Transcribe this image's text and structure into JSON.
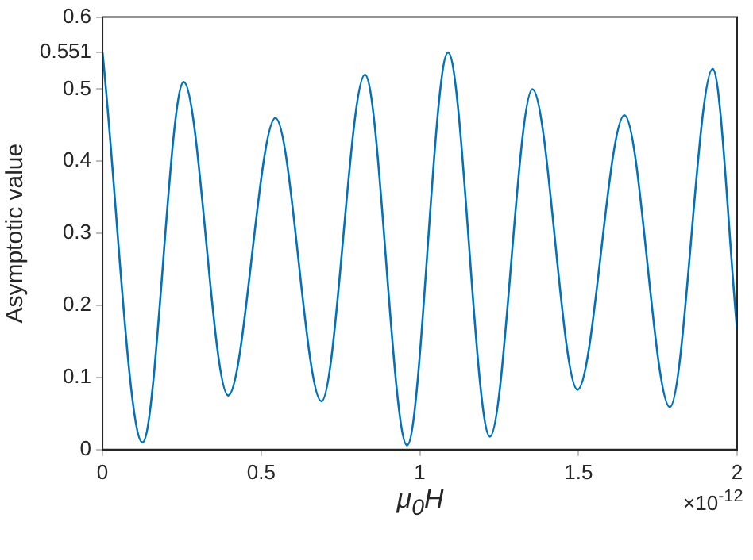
{
  "chart_data": {
    "type": "line",
    "xlabel": "μ$_{0}$H",
    "ylabel": "Asymptotic value",
    "annotations": [
      "×10$^{-12}$"
    ],
    "x": [
      0,
      0.126,
      0.256,
      0.396,
      0.545,
      0.69,
      0.827,
      0.96,
      1.089,
      1.221,
      1.355,
      1.497,
      1.645,
      1.788,
      1.923,
      2
    ],
    "series": [
      {
        "color": "#0072bd",
        "values": [
          0.551,
          0.01,
          0.51,
          0.075,
          0.46,
          0.067,
          0.52,
          0.006,
          0.551,
          0.018,
          0.5,
          0.083,
          0.464,
          0.059,
          0.528,
          0.166
        ]
      }
    ],
    "xlim": [
      0,
      2
    ],
    "xticks": [
      0,
      0.5,
      1,
      1.5,
      2
    ],
    "ylim": [
      0,
      0.6
    ],
    "yticks": [
      0,
      0.1,
      0.2,
      0.3,
      0.4,
      0.5,
      0.551,
      0.6
    ],
    "grid": false,
    "legend": false,
    "marker": "none",
    "line_style": "solid"
  }
}
